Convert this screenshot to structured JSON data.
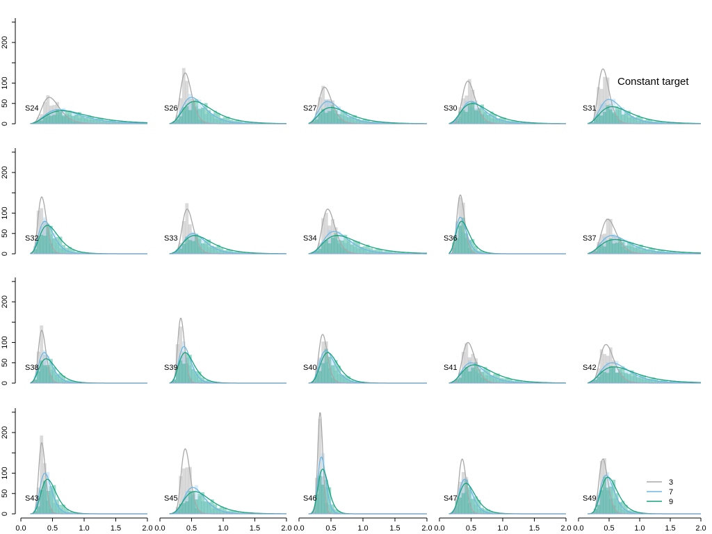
{
  "title": "Constant target",
  "legend": {
    "placement": "bottom-right",
    "items": [
      {
        "label": "3",
        "color": "#a8a8a8"
      },
      {
        "label": "7",
        "color": "#6fb7e3"
      },
      {
        "label": "9",
        "color": "#16a37d"
      }
    ]
  },
  "chart_data": {
    "type": "area",
    "x_ticks": [
      "0.0",
      "0.5",
      "1.0",
      "1.5",
      "2.0"
    ],
    "xlim": [
      0,
      2
    ],
    "y_ticks": [
      "0",
      "50",
      "100",
      "200"
    ],
    "ylim": [
      0,
      260
    ],
    "series_names": [
      "3",
      "7",
      "9"
    ],
    "panels": [
      {
        "label": "S24",
        "peaks": [
          [
            0.45,
            65,
            0.3
          ],
          [
            0.6,
            35,
            0.45
          ],
          [
            0.65,
            32,
            0.5
          ]
        ]
      },
      {
        "label": "S26",
        "peaks": [
          [
            0.4,
            125,
            0.22
          ],
          [
            0.5,
            65,
            0.35
          ],
          [
            0.55,
            55,
            0.42
          ]
        ]
      },
      {
        "label": "S27",
        "peaks": [
          [
            0.4,
            90,
            0.25
          ],
          [
            0.45,
            55,
            0.38
          ],
          [
            0.5,
            40,
            0.45
          ]
        ]
      },
      {
        "label": "S30",
        "peaks": [
          [
            0.45,
            105,
            0.22
          ],
          [
            0.5,
            55,
            0.35
          ],
          [
            0.52,
            50,
            0.42
          ]
        ]
      },
      {
        "label": "S31",
        "peaks": [
          [
            0.4,
            135,
            0.22
          ],
          [
            0.5,
            60,
            0.36
          ],
          [
            0.55,
            42,
            0.45
          ]
        ]
      },
      {
        "label": "S32",
        "peaks": [
          [
            0.33,
            140,
            0.2
          ],
          [
            0.38,
            80,
            0.3
          ],
          [
            0.42,
            70,
            0.35
          ]
        ]
      },
      {
        "label": "S33",
        "peaks": [
          [
            0.43,
            110,
            0.2
          ],
          [
            0.52,
            50,
            0.32
          ],
          [
            0.55,
            45,
            0.4
          ]
        ]
      },
      {
        "label": "S34",
        "peaks": [
          [
            0.45,
            110,
            0.22
          ],
          [
            0.55,
            55,
            0.35
          ],
          [
            0.6,
            45,
            0.45
          ]
        ]
      },
      {
        "label": "S36",
        "peaks": [
          [
            0.33,
            145,
            0.18
          ],
          [
            0.33,
            90,
            0.25
          ],
          [
            0.35,
            80,
            0.3
          ]
        ]
      },
      {
        "label": "S37",
        "peaks": [
          [
            0.48,
            85,
            0.25
          ],
          [
            0.55,
            45,
            0.4
          ],
          [
            0.6,
            35,
            0.5
          ]
        ]
      },
      {
        "label": "S38",
        "peaks": [
          [
            0.33,
            130,
            0.18
          ],
          [
            0.37,
            75,
            0.28
          ],
          [
            0.4,
            60,
            0.33
          ]
        ]
      },
      {
        "label": "S39",
        "peaks": [
          [
            0.33,
            160,
            0.16
          ],
          [
            0.38,
            90,
            0.25
          ],
          [
            0.4,
            75,
            0.3
          ]
        ]
      },
      {
        "label": "S40",
        "peaks": [
          [
            0.37,
            120,
            0.18
          ],
          [
            0.42,
            80,
            0.28
          ],
          [
            0.45,
            75,
            0.3
          ]
        ]
      },
      {
        "label": "S41",
        "peaks": [
          [
            0.45,
            100,
            0.22
          ],
          [
            0.5,
            50,
            0.35
          ],
          [
            0.55,
            45,
            0.42
          ]
        ]
      },
      {
        "label": "S42",
        "peaks": [
          [
            0.45,
            95,
            0.25
          ],
          [
            0.55,
            50,
            0.4
          ],
          [
            0.58,
            40,
            0.48
          ]
        ]
      },
      {
        "label": "S43",
        "peaks": [
          [
            0.33,
            175,
            0.16
          ],
          [
            0.38,
            100,
            0.24
          ],
          [
            0.42,
            85,
            0.28
          ]
        ]
      },
      {
        "label": "S45",
        "peaks": [
          [
            0.4,
            160,
            0.18
          ],
          [
            0.52,
            65,
            0.3
          ],
          [
            0.55,
            55,
            0.38
          ]
        ]
      },
      {
        "label": "S46",
        "peaks": [
          [
            0.33,
            250,
            0.12
          ],
          [
            0.35,
            140,
            0.18
          ],
          [
            0.37,
            110,
            0.22
          ]
        ]
      },
      {
        "label": "S47",
        "peaks": [
          [
            0.36,
            135,
            0.16
          ],
          [
            0.4,
            85,
            0.25
          ],
          [
            0.42,
            75,
            0.3
          ]
        ]
      },
      {
        "label": "S49",
        "peaks": [
          [
            0.4,
            135,
            0.18
          ],
          [
            0.45,
            95,
            0.25
          ],
          [
            0.48,
            90,
            0.28
          ]
        ]
      }
    ]
  }
}
